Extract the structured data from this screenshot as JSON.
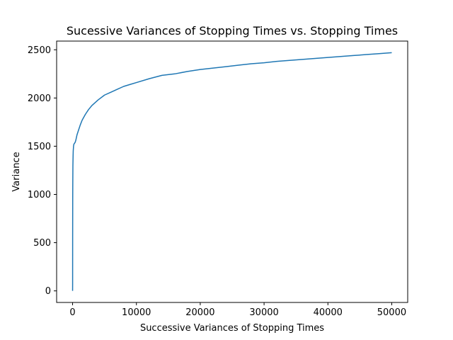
{
  "chart_data": {
    "type": "line",
    "title": "Sucessive Variances of Stopping Times vs. Stopping Times",
    "xlabel": "Successive Variances of Stopping Times",
    "ylabel": "Variance",
    "xlim": [
      -2500,
      52500
    ],
    "ylim": [
      -120,
      2590
    ],
    "xticks": [
      0,
      10000,
      20000,
      30000,
      40000,
      50000
    ],
    "xtick_labels": [
      "0",
      "10000",
      "20000",
      "30000",
      "40000",
      "50000"
    ],
    "yticks": [
      0,
      500,
      1000,
      1500,
      2000,
      2500
    ],
    "ytick_labels": [
      "0",
      "500",
      "1000",
      "1500",
      "2000",
      "2500"
    ],
    "grid": false,
    "series": [
      {
        "color": "#1f77b4",
        "x": [
          1,
          5,
          10,
          20,
          30,
          50,
          80,
          100,
          150,
          200,
          300,
          400,
          500,
          700,
          900,
          1200,
          1500,
          2000,
          2500,
          3000,
          4000,
          5000,
          6000,
          7000,
          8000,
          9000,
          10000,
          12000,
          14000,
          16000,
          18000,
          20000,
          22000,
          24000,
          26000,
          28000,
          30000,
          32000,
          34000,
          36000,
          38000,
          40000,
          42000,
          44000,
          46000,
          48000,
          50000
        ],
        "y": [
          0,
          60,
          550,
          950,
          1100,
          1300,
          1400,
          1450,
          1500,
          1520,
          1530,
          1540,
          1560,
          1620,
          1660,
          1720,
          1770,
          1830,
          1880,
          1920,
          1980,
          2030,
          2060,
          2090,
          2120,
          2140,
          2160,
          2200,
          2235,
          2250,
          2275,
          2295,
          2310,
          2325,
          2340,
          2355,
          2365,
          2380,
          2390,
          2400,
          2410,
          2420,
          2430,
          2440,
          2450,
          2460,
          2470
        ]
      }
    ]
  }
}
